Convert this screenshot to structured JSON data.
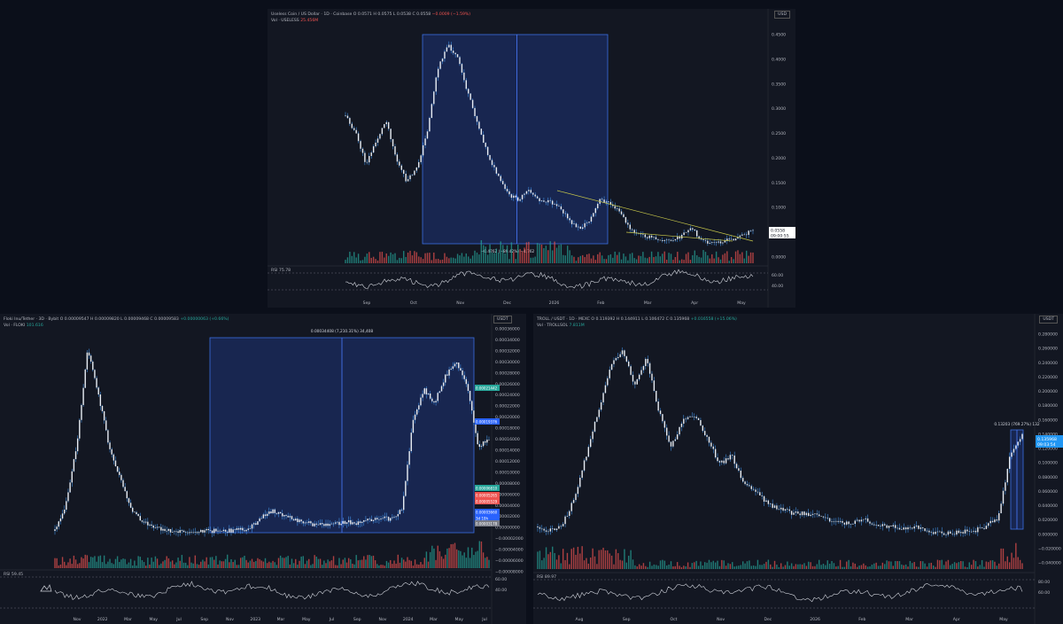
{
  "charts": [
    {
      "id": "useless",
      "header": {
        "symbol": "Useless Coin / US Dollar · 1D · Coinbase",
        "open": "O 0.0571",
        "high": "H 0.0575",
        "low": "L 0.0538",
        "close": "C 0.0558",
        "change": "−0.0009 (−1.59%)",
        "vol_label": "Vol · USELESS",
        "vol_value": "25.456M"
      },
      "currency": "USD",
      "price_ticks": [
        "0.4500",
        "0.4000",
        "0.3500",
        "0.3000",
        "0.2500",
        "0.2000",
        "0.1500",
        "0.1000",
        "0.0500",
        "0.0000"
      ],
      "time_ticks": [
        "Sep",
        "Oct",
        "Nov",
        "Dec",
        "2026",
        "Feb",
        "Mar",
        "Apr",
        "May"
      ],
      "last_price": "0.0558",
      "countdown": "09:00:55",
      "measure_label": "−0.4762 (−89.42%) −4,762",
      "rsi_label": "RSI",
      "rsi_value": "75.78",
      "rsi_ticks": [
        "60.00",
        "40.00"
      ],
      "colors": {
        "up": "#26a69a",
        "down": "#ef5350",
        "candle": "#e9eef5",
        "wick": "#4aa3ff",
        "box": "#1e3a8a",
        "trend": "#c8c84a"
      }
    },
    {
      "id": "floki",
      "header": {
        "symbol": "Floki Inu/Tether · 3D · Bybit",
        "open": "O 0.00009547",
        "high": "H 0.00009820",
        "low": "L 0.00009468",
        "close": "C 0.00009583",
        "change": "+0.00000063 (+0.66%)",
        "vol_label": "Vol · FLOKI",
        "vol_value": "101.616"
      },
      "currency": "USDT",
      "price_ticks": [
        "0.00036000",
        "0.00034000",
        "0.00032000",
        "0.00030000",
        "0.00028000",
        "0.00026000",
        "0.00024000",
        "0.00022000",
        "0.00020000",
        "0.00018000",
        "0.00016000",
        "0.00014000",
        "0.00012000",
        "0.00010000",
        "0.00008000",
        "0.00006000",
        "0.00004000",
        "0.00002000",
        "0.00000000",
        "−0.00002000",
        "−0.00004000",
        "−0.00006000",
        "−0.00008000"
      ],
      "time_ticks": [
        "Nov",
        "2022",
        "Mar",
        "May",
        "Jul",
        "Sep",
        "Nov",
        "2023",
        "Mar",
        "May",
        "Jul",
        "Sep",
        "Nov",
        "2024",
        "Mar",
        "May",
        "Jul"
      ],
      "price_labels": [
        {
          "text": "0.00021442",
          "color": "#26a69a"
        },
        {
          "text": "0.00019376",
          "color": "#2962ff"
        },
        {
          "text": "0.00006810",
          "color": "#26a69a"
        },
        {
          "text": "0.00005265",
          "color": "#ef5350"
        },
        {
          "text": "0.00005529",
          "color": "#ef5350"
        },
        {
          "text": "0.00003660",
          "color": "#2962ff"
        },
        {
          "text": "3d 10h",
          "color": "#2962ff"
        },
        {
          "text": "0.00003178",
          "color": "#787b86"
        }
      ],
      "measure_label": "0.00034408 (7,210.31%) 34,408",
      "rsi_label": "RSI",
      "rsi_value": "59.45",
      "rsi_ticks": [
        "60.00",
        "40.00"
      ],
      "colors": {
        "up": "#26a69a",
        "down": "#ef5350",
        "candle": "#e9eef5",
        "wick": "#4aa3ff",
        "box": "#1e3a8a"
      }
    },
    {
      "id": "troll",
      "header": {
        "symbol": "TROLL / USDT · 1D · MEXC",
        "open": "O 0.119392",
        "high": "H 0.144911",
        "low": "L 0.106472",
        "close": "C 0.135968",
        "change": "+0.016558 (+15.06%)",
        "vol_label": "Vol · TROLLSOL",
        "vol_value": "7.811M"
      },
      "currency": "USDT",
      "price_ticks": [
        "0.280000",
        "0.260000",
        "0.240000",
        "0.220000",
        "0.200000",
        "0.180000",
        "0.160000",
        "0.140000",
        "0.120000",
        "0.100000",
        "0.080000",
        "0.060000",
        "0.040000",
        "0.020000",
        "0.000000",
        "−0.020000",
        "−0.040000"
      ],
      "time_ticks": [
        "Aug",
        "Sep",
        "Oct",
        "Nov",
        "Dec",
        "2026",
        "Feb",
        "Mar",
        "Apr",
        "May"
      ],
      "last_price": "0.135968",
      "countdown": "09:03:54",
      "measure_label": "0.13203 (769.27%) 132",
      "rsi_label": "RSI",
      "rsi_value": "89.97",
      "rsi_ticks": [
        "80.00",
        "60.00"
      ],
      "colors": {
        "up": "#26a69a",
        "down": "#ef5350",
        "candle": "#e9eef5",
        "wick": "#4aa3ff",
        "box": "#1e3a8a"
      }
    }
  ]
}
